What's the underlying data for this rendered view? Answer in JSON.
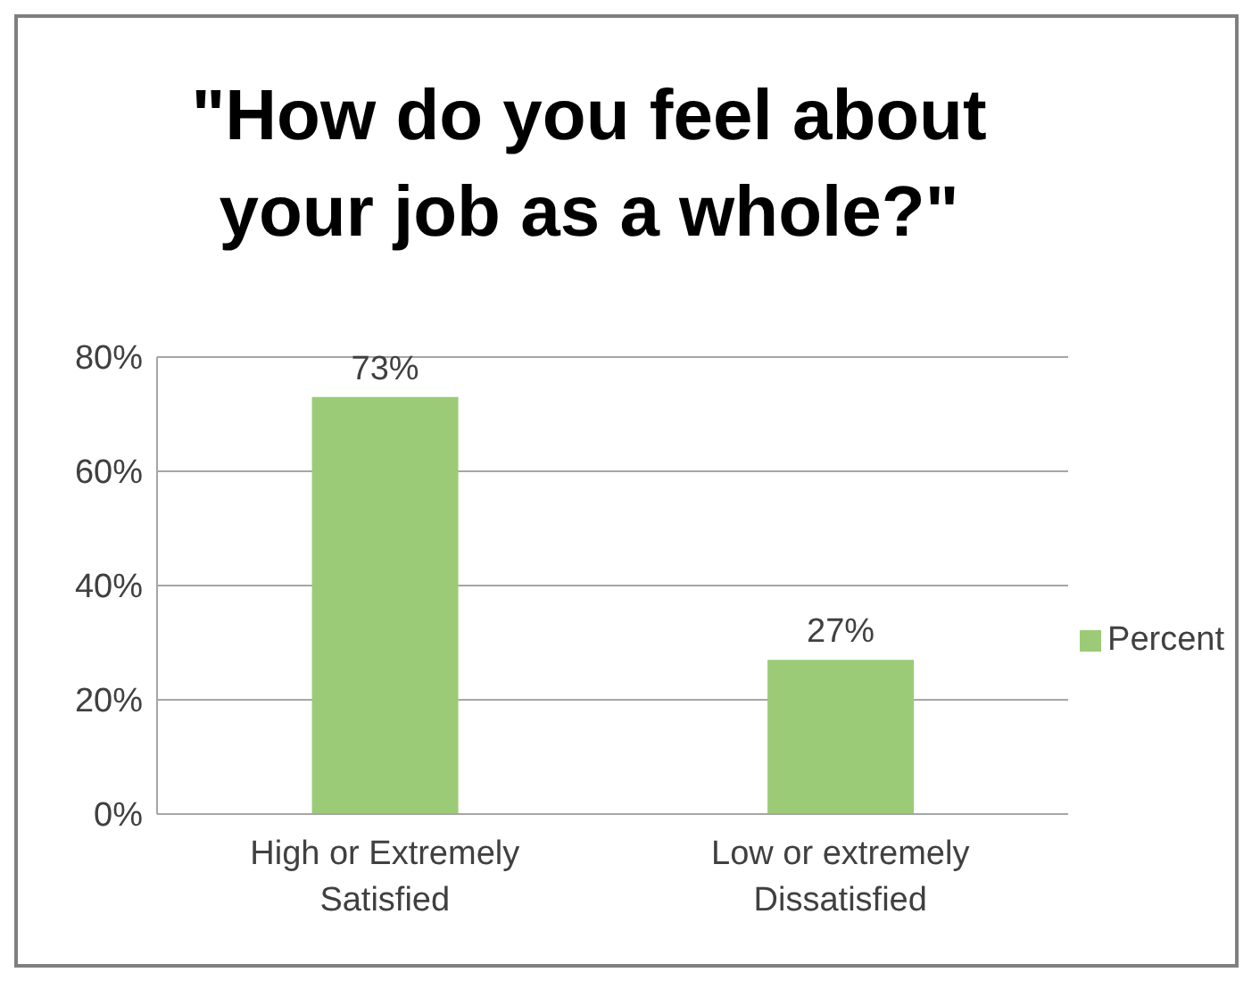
{
  "chart_data": {
    "type": "bar",
    "title": "\"How do you feel about your job as a whole?\"",
    "categories": [
      "High or Extremely Satisfied",
      "Low or extremely Dissatisfied"
    ],
    "series": [
      {
        "name": "Percent",
        "color": "#9bcb77",
        "values": [
          73,
          27
        ],
        "value_labels": [
          "73%",
          "27%"
        ]
      }
    ],
    "ylim": [
      0,
      80
    ],
    "yticks": [
      {
        "value": 0,
        "label": "0%"
      },
      {
        "value": 20,
        "label": "20%"
      },
      {
        "value": 40,
        "label": "40%"
      },
      {
        "value": 60,
        "label": "60%"
      },
      {
        "value": 80,
        "label": "80%"
      }
    ],
    "grid": "y",
    "legend": "right"
  }
}
